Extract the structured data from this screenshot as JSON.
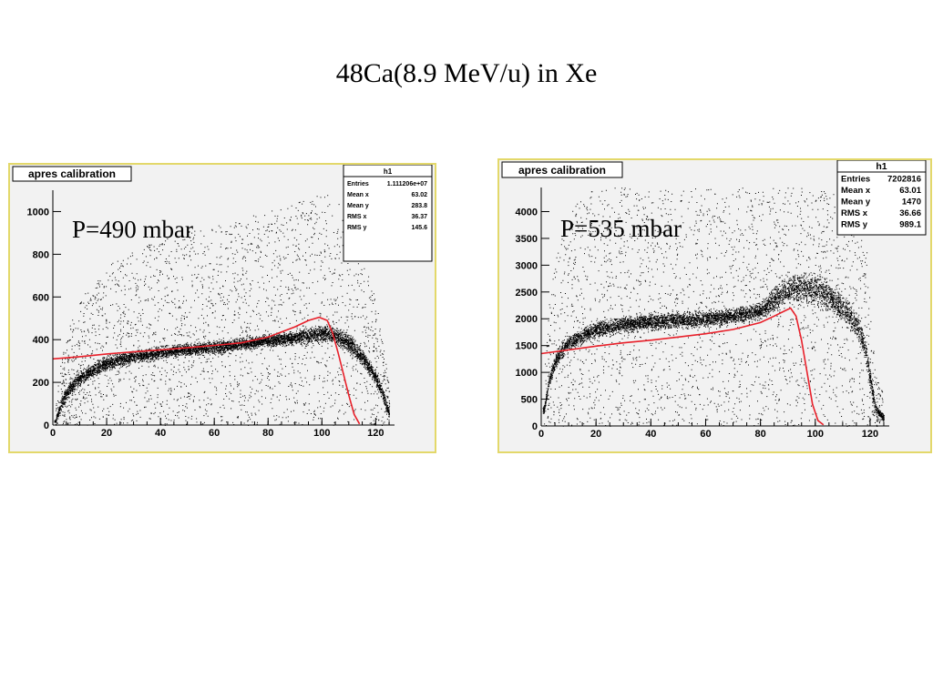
{
  "slide": {
    "title": "48Ca(8.9 MeV/u) in Xe"
  },
  "colors": {
    "panel_border": "#e3d86a",
    "panel_bg": "#f2f2f2",
    "fit_line": "#e8202a",
    "scatter": "#000000"
  },
  "chart_data": [
    {
      "type": "scatter",
      "title": "apres calibration",
      "annotation": "P=490 mbar",
      "xlim": [
        0,
        127
      ],
      "ylim": [
        0,
        1100
      ],
      "x_ticks": [
        0,
        20,
        40,
        60,
        80,
        100,
        120
      ],
      "y_ticks": [
        0,
        200,
        400,
        600,
        800,
        1000
      ],
      "grid": false,
      "stats": {
        "title": "h1",
        "rows": [
          {
            "label": "Entries",
            "value": "1.111206e+07"
          },
          {
            "label": "Mean x",
            "value": "63.02"
          },
          {
            "label": "Mean y",
            "value": "283.8"
          },
          {
            "label": "RMS x",
            "value": "36.37"
          },
          {
            "label": "RMS y",
            "value": "145.6"
          }
        ]
      },
      "band": {
        "x": [
          1,
          3,
          6,
          10,
          15,
          20,
          30,
          40,
          50,
          60,
          70,
          80,
          90,
          95,
          100,
          104,
          108,
          112,
          116,
          120,
          123,
          125
        ],
        "y": [
          20,
          100,
          170,
          220,
          260,
          290,
          320,
          340,
          355,
          365,
          380,
          395,
          410,
          420,
          430,
          425,
          400,
          360,
          300,
          220,
          130,
          50
        ],
        "spread": [
          10,
          40,
          45,
          45,
          45,
          45,
          40,
          40,
          40,
          40,
          40,
          40,
          45,
          50,
          55,
          55,
          55,
          55,
          50,
          45,
          40,
          25
        ]
      },
      "fit": {
        "x": [
          0,
          10,
          20,
          30,
          40,
          50,
          60,
          70,
          80,
          90,
          95,
          99,
          102,
          104,
          106,
          108,
          110,
          112,
          114
        ],
        "y": [
          310,
          320,
          333,
          343,
          352,
          362,
          373,
          385,
          412,
          460,
          490,
          505,
          490,
          430,
          340,
          240,
          140,
          50,
          5
        ]
      }
    },
    {
      "type": "scatter",
      "title": "apres calibration",
      "annotation": "P=535 mbar",
      "xlim": [
        0,
        127
      ],
      "ylim": [
        0,
        4450
      ],
      "x_ticks": [
        0,
        20,
        40,
        60,
        80,
        100,
        120
      ],
      "y_ticks": [
        0,
        500,
        1000,
        1500,
        2000,
        2500,
        3000,
        3500,
        4000
      ],
      "grid": false,
      "stats": {
        "title": "h1",
        "rows": [
          {
            "label": "Entries",
            "value": "7202816"
          },
          {
            "label": "Mean x",
            "value": "63.01"
          },
          {
            "label": "Mean y",
            "value": "1470"
          },
          {
            "label": "RMS x",
            "value": "36.66"
          },
          {
            "label": "RMS y",
            "value": "989.1"
          }
        ]
      },
      "band": {
        "x": [
          1,
          3,
          6,
          10,
          15,
          20,
          30,
          40,
          50,
          60,
          70,
          80,
          85,
          90,
          95,
          100,
          105,
          110,
          115,
          118,
          120,
          122,
          125
        ],
        "y": [
          300,
          900,
          1300,
          1550,
          1700,
          1800,
          1900,
          1950,
          1980,
          2000,
          2050,
          2150,
          2350,
          2550,
          2600,
          2550,
          2400,
          2200,
          1900,
          1500,
          900,
          300,
          150
        ],
        "spread": [
          100,
          180,
          200,
          200,
          200,
          200,
          200,
          200,
          200,
          200,
          200,
          220,
          300,
          350,
          380,
          380,
          380,
          380,
          350,
          300,
          250,
          120,
          80
        ]
      },
      "fit": {
        "x": [
          0,
          10,
          20,
          30,
          40,
          50,
          60,
          70,
          80,
          85,
          89,
          91,
          93,
          95,
          97,
          99,
          101,
          103
        ],
        "y": [
          1350,
          1420,
          1490,
          1550,
          1600,
          1660,
          1720,
          1800,
          1930,
          2050,
          2150,
          2200,
          2050,
          1600,
          1000,
          400,
          100,
          20
        ]
      }
    }
  ]
}
